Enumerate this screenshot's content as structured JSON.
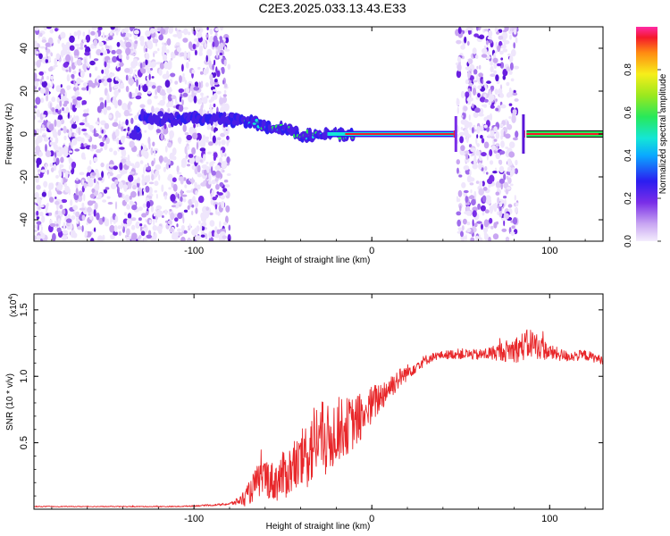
{
  "title": "C2E3.2025.033.13.43.E33",
  "chart_data": [
    {
      "type": "heatmap",
      "xlabel": "Height of straight line (km)",
      "ylabel": "Frequency (Hz)",
      "xlim": [
        -190,
        130
      ],
      "ylim": [
        -50,
        50
      ],
      "xticks": [
        -100,
        0,
        100
      ],
      "yticks": [
        -40,
        -20,
        0,
        20,
        40
      ],
      "colorbar": {
        "label": "Normalized spectral amplitude",
        "range": [
          0,
          1
        ],
        "ticks": [
          "0.0",
          "0.2",
          "0.4",
          "0.6",
          "0.8"
        ],
        "tick_values": [
          0,
          0.2,
          0.4,
          0.6,
          0.8
        ]
      },
      "signal_track": [
        {
          "x": -130,
          "y": 8
        },
        {
          "x": -110,
          "y": 7
        },
        {
          "x": -95,
          "y": 8
        },
        {
          "x": -80,
          "y": 7
        },
        {
          "x": -70,
          "y": 6
        },
        {
          "x": -60,
          "y": 4
        },
        {
          "x": -50,
          "y": 2
        },
        {
          "x": -40,
          "y": 0
        },
        {
          "x": -30,
          "y": -1
        },
        {
          "x": -20,
          "y": 0
        },
        {
          "x": -10,
          "y": 0
        },
        {
          "x": 0,
          "y": 0
        },
        {
          "x": 20,
          "y": 0
        },
        {
          "x": 45,
          "y": 0
        }
      ],
      "noise_bands_x": [
        [
          -190,
          -80
        ],
        [
          48,
          82
        ]
      ]
    },
    {
      "type": "line",
      "xlabel": "Height of straight line (km)",
      "ylabel": "SNR (10 * v/v)",
      "y_multiplier": "(x10",
      "y_multiplier_exp": "4",
      "y_multiplier_close": ")",
      "xlim": [
        -190,
        130
      ],
      "ylim": [
        0,
        1.62
      ],
      "xticks": [
        -100,
        0,
        100
      ],
      "yticks": [
        0.5,
        1.0,
        1.5
      ],
      "ytick_labels": [
        "0.5",
        "1.0",
        "1.5"
      ],
      "color": "#e8272a",
      "series": [
        {
          "x": [
            -190,
            -150,
            -110,
            -90,
            -80,
            -75,
            -70,
            -65,
            -60,
            -55,
            -50,
            -45,
            -40,
            -35,
            -30,
            -25,
            -20,
            -15,
            -10,
            -5,
            0,
            5,
            10,
            15,
            20,
            25,
            30,
            35,
            40,
            50,
            60,
            70,
            80,
            90,
            100,
            110,
            120,
            130
          ],
          "y": [
            0.02,
            0.02,
            0.02,
            0.03,
            0.04,
            0.06,
            0.1,
            0.2,
            0.25,
            0.2,
            0.25,
            0.3,
            0.35,
            0.45,
            0.55,
            0.5,
            0.6,
            0.62,
            0.65,
            0.7,
            0.78,
            0.85,
            0.92,
            0.98,
            1.03,
            1.08,
            1.12,
            1.15,
            1.16,
            1.17,
            1.16,
            1.18,
            1.2,
            1.25,
            1.18,
            1.15,
            1.16,
            1.12
          ],
          "amplitude": [
            0.003,
            0.003,
            0.004,
            0.006,
            0.01,
            0.03,
            0.08,
            0.12,
            0.15,
            0.15,
            0.18,
            0.2,
            0.22,
            0.3,
            0.3,
            0.28,
            0.25,
            0.22,
            0.2,
            0.18,
            0.15,
            0.12,
            0.1,
            0.08,
            0.06,
            0.05,
            0.04,
            0.03,
            0.03,
            0.04,
            0.04,
            0.06,
            0.1,
            0.12,
            0.06,
            0.04,
            0.04,
            0.03
          ]
        }
      ]
    }
  ]
}
